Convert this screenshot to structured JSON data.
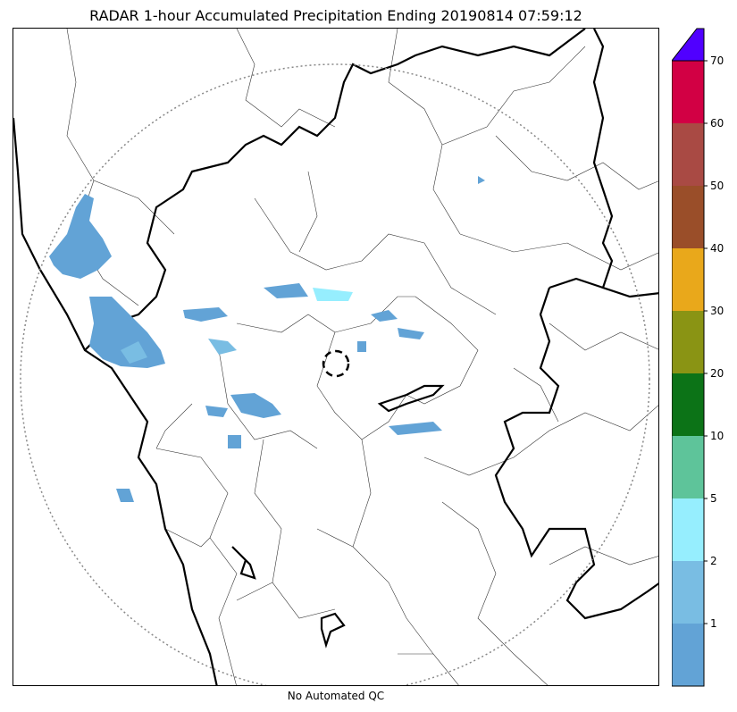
{
  "title": "RADAR 1-hour Accumulated Precipitation Ending 20190814 07:59:12",
  "subtitle": "No Automated QC",
  "legend": {
    "overflow_color": "#5000ff",
    "bins": [
      {
        "color": "#62a3d6",
        "label": "1"
      },
      {
        "color": "#79bde3",
        "label": "2"
      },
      {
        "color": "#96eefe",
        "label": "5"
      },
      {
        "color": "#5ec49a",
        "label": "10"
      },
      {
        "color": "#0c7317",
        "label": "20"
      },
      {
        "color": "#8a9414",
        "label": "30"
      },
      {
        "color": "#e9a81b",
        "label": "40"
      },
      {
        "color": "#9a4e29",
        "label": "50"
      },
      {
        "color": "#a94a44",
        "label": "60"
      },
      {
        "color": "#d20044",
        "label": "70"
      }
    ]
  },
  "map": {
    "range_ring_color": "#888888",
    "precip_color": "#62a3d6",
    "precip_light_color": "#96eefe"
  }
}
